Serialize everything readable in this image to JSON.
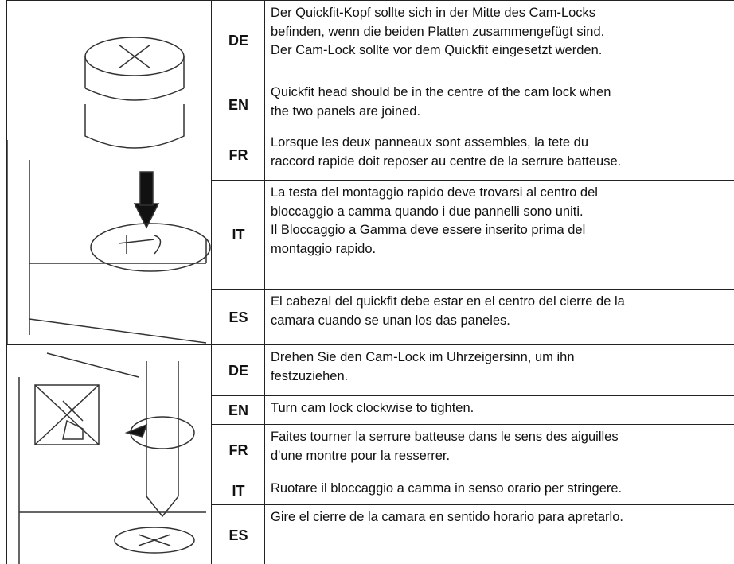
{
  "sections": [
    {
      "rows": [
        {
          "lang": "DE",
          "lines": [
            "Der Quickfit-Kopf sollte sich in der Mitte des Cam-Locks",
            "befinden, wenn die beiden Platten zusammengefügt sind.",
            "Der Cam-Lock sollte vor dem Quickfit eingesetzt werden."
          ]
        },
        {
          "lang": "EN",
          "lines": [
            "Quickfit head should be in the centre of the cam lock when",
            "the two panels are joined."
          ]
        },
        {
          "lang": "FR",
          "lines": [
            "Lorsque les deux panneaux sont assembles, la tete du",
            "raccord rapide doit reposer au centre de la serrure batteuse."
          ]
        },
        {
          "lang": "IT",
          "lines": [
            "La testa del montaggio rapido deve trovarsi al centro del",
            "bloccaggio a camma quando i due pannelli sono uniti.",
            "Il Bloccaggio a Gamma deve essere inserito prima del",
            "montaggio rapido."
          ]
        },
        {
          "lang": "ES",
          "lines": [
            "El cabezal del quickfit debe estar en el centro del cierre de la",
            "camara cuando se unan los das paneles."
          ]
        }
      ]
    },
    {
      "rows": [
        {
          "lang": "DE",
          "lines": [
            "Drehen Sie den Cam-Lock im Uhrzeigersinn, um ihn",
            "festzuziehen."
          ]
        },
        {
          "lang": "EN",
          "lines": [
            "Turn cam lock clockwise to tighten."
          ]
        },
        {
          "lang": "FR",
          "lines": [
            "Faites tourner la serrure batteuse dans le sens des aiguilles",
            "d'une montre pour la resserrer."
          ]
        },
        {
          "lang": "IT",
          "lines": [
            "Ruotare il bloccaggio a camma in senso orario per stringere."
          ]
        },
        {
          "lang": "ES",
          "lines": [
            "Gire el cierre de la camara en sentido horario para apretarlo."
          ]
        }
      ]
    }
  ]
}
